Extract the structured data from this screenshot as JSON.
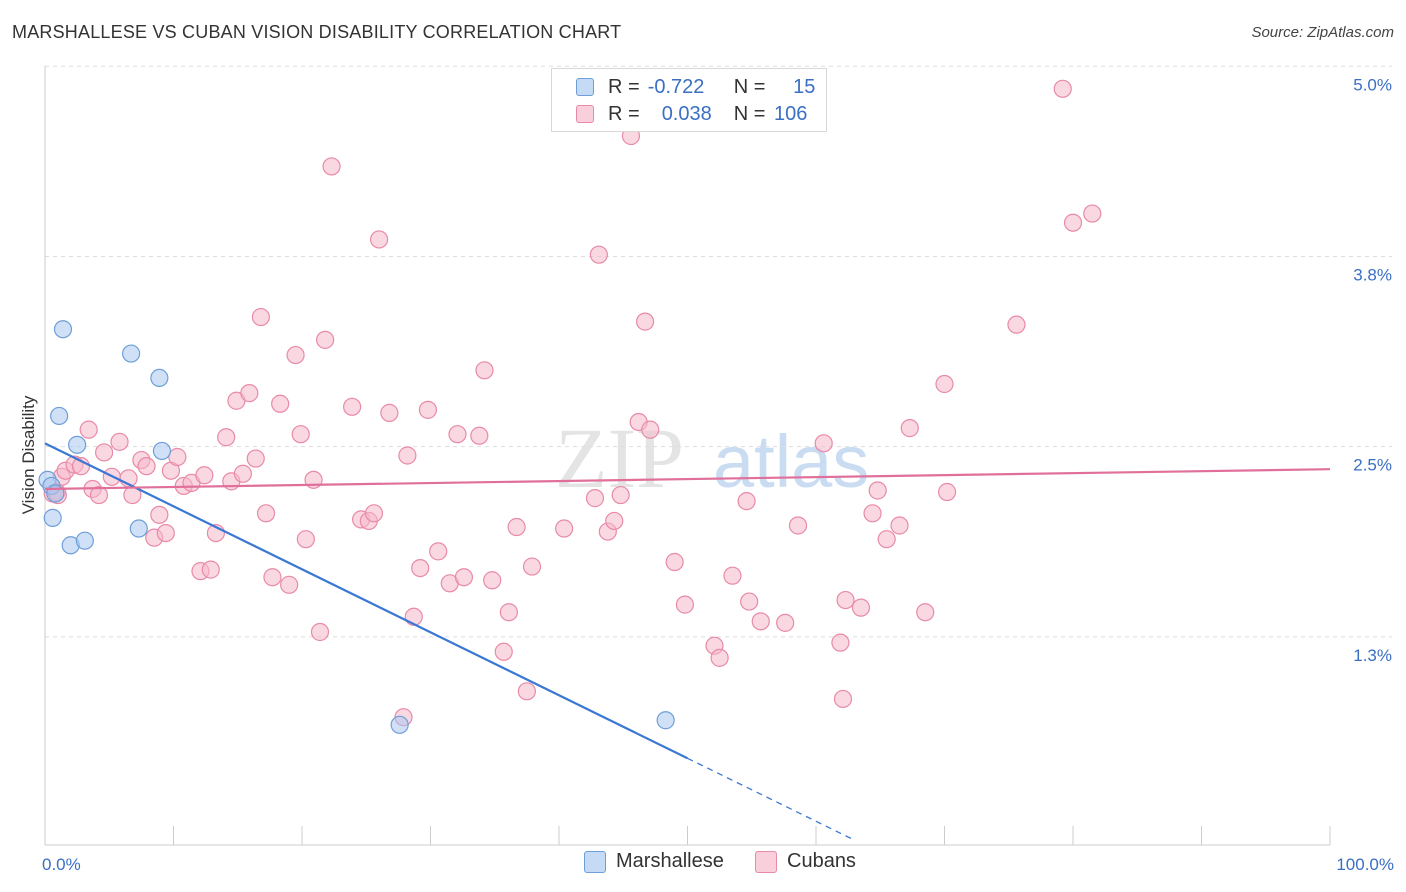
{
  "header": {
    "title": "MARSHALLESE VS CUBAN VISION DISABILITY CORRELATION CHART",
    "source": "Source: ZipAtlas.com"
  },
  "legend": {
    "rows": [
      {
        "r_label": "R =",
        "r_value": "-0.722",
        "n_label": "N =",
        "n_value": "15"
      },
      {
        "r_label": "R =",
        "r_value": "0.038",
        "n_label": "N =",
        "n_value": "106"
      }
    ]
  },
  "bottom_legend": {
    "items": [
      {
        "label": "Marshallese"
      },
      {
        "label": "Cubans"
      }
    ]
  },
  "watermark": {
    "zip": "ZIP",
    "atlas": "atlas"
  },
  "colors": {
    "marshallese_fill": "#aac8f0",
    "marshallese_stroke": "#6e9fd8",
    "marshallese_line": "#3a78d4",
    "cubans_fill": "#f5b8cb",
    "cubans_stroke": "#e88aa8",
    "cubans_line": "#e0709a",
    "axis_label": "#3a6fc4",
    "grid": "#dddddd"
  },
  "chart_data": {
    "type": "scatter",
    "title": "MARSHALLESE VS CUBAN VISION DISABILITY CORRELATION CHART",
    "xlabel": "",
    "ylabel": "Vision Disability",
    "xlim": [
      0,
      100
    ],
    "ylim": [
      0,
      5.12
    ],
    "x_tick_labels": [
      {
        "value": 0,
        "label": "0.0%"
      },
      {
        "value": 100,
        "label": "100.0%"
      }
    ],
    "y_tick_labels": [
      {
        "value": 1.25,
        "label": "1.3%"
      },
      {
        "value": 2.5,
        "label": "2.5%"
      },
      {
        "value": 3.75,
        "label": "3.8%"
      },
      {
        "value": 5.0,
        "label": "5.0%"
      }
    ],
    "series": [
      {
        "name": "Marshallese",
        "r": -0.722,
        "n": 15,
        "points": [
          [
            0.2,
            2.4
          ],
          [
            0.5,
            2.36
          ],
          [
            0.6,
            2.15
          ],
          [
            0.8,
            2.31
          ],
          [
            1.1,
            2.82
          ],
          [
            1.4,
            3.39
          ],
          [
            2.0,
            1.97
          ],
          [
            2.5,
            2.63
          ],
          [
            3.1,
            2.0
          ],
          [
            6.7,
            3.23
          ],
          [
            7.3,
            2.08
          ],
          [
            8.9,
            3.07
          ],
          [
            9.1,
            2.59
          ],
          [
            27.6,
            0.79
          ],
          [
            48.3,
            0.82
          ]
        ],
        "trend": {
          "x0": 0,
          "y0": 2.64,
          "x1": 50,
          "y1": 0.57,
          "dashed_to_x": 62.9
        }
      },
      {
        "name": "Cubans",
        "r": 0.038,
        "n": 106,
        "points": [
          [
            0.6,
            2.31
          ],
          [
            0.9,
            2.32
          ],
          [
            1.3,
            2.42
          ],
          [
            1.6,
            2.46
          ],
          [
            2.3,
            2.5
          ],
          [
            2.8,
            2.49
          ],
          [
            3.4,
            2.73
          ],
          [
            3.7,
            2.34
          ],
          [
            4.2,
            2.3
          ],
          [
            4.6,
            2.58
          ],
          [
            5.2,
            2.42
          ],
          [
            5.8,
            2.65
          ],
          [
            6.5,
            2.41
          ],
          [
            6.8,
            2.3
          ],
          [
            7.5,
            2.53
          ],
          [
            7.9,
            2.49
          ],
          [
            8.5,
            2.02
          ],
          [
            8.9,
            2.17
          ],
          [
            9.4,
            2.05
          ],
          [
            9.8,
            2.46
          ],
          [
            10.3,
            2.55
          ],
          [
            10.8,
            2.36
          ],
          [
            11.4,
            2.38
          ],
          [
            12.1,
            1.8
          ],
          [
            12.4,
            2.43
          ],
          [
            12.9,
            1.81
          ],
          [
            13.3,
            2.05
          ],
          [
            14.1,
            2.68
          ],
          [
            14.5,
            2.39
          ],
          [
            14.9,
            2.92
          ],
          [
            15.4,
            2.44
          ],
          [
            15.9,
            2.97
          ],
          [
            16.4,
            2.54
          ],
          [
            16.8,
            3.47
          ],
          [
            17.2,
            2.18
          ],
          [
            17.7,
            1.76
          ],
          [
            18.3,
            2.9
          ],
          [
            19.0,
            1.71
          ],
          [
            19.5,
            3.22
          ],
          [
            19.9,
            2.7
          ],
          [
            20.3,
            2.01
          ],
          [
            20.9,
            2.4
          ],
          [
            21.4,
            1.4
          ],
          [
            21.8,
            3.32
          ],
          [
            22.3,
            4.46
          ],
          [
            23.9,
            2.88
          ],
          [
            24.6,
            2.14
          ],
          [
            25.2,
            2.13
          ],
          [
            25.6,
            2.18
          ],
          [
            26.0,
            3.98
          ],
          [
            26.8,
            2.84
          ],
          [
            27.9,
            0.84
          ],
          [
            28.2,
            2.56
          ],
          [
            28.7,
            1.5
          ],
          [
            29.2,
            1.82
          ],
          [
            29.8,
            2.86
          ],
          [
            30.6,
            1.93
          ],
          [
            31.5,
            1.72
          ],
          [
            32.1,
            2.7
          ],
          [
            32.6,
            1.76
          ],
          [
            33.8,
            2.69
          ],
          [
            34.2,
            3.12
          ],
          [
            34.8,
            1.74
          ],
          [
            35.7,
            1.27
          ],
          [
            36.1,
            1.53
          ],
          [
            36.7,
            2.09
          ],
          [
            37.5,
            1.01
          ],
          [
            37.9,
            1.83
          ],
          [
            40.4,
            2.08
          ],
          [
            42.8,
            2.28
          ],
          [
            43.1,
            3.88
          ],
          [
            43.8,
            2.06
          ],
          [
            44.3,
            2.13
          ],
          [
            44.8,
            2.3
          ],
          [
            45.6,
            4.66
          ],
          [
            46.2,
            2.78
          ],
          [
            46.7,
            3.44
          ],
          [
            47.1,
            2.73
          ],
          [
            49.0,
            1.86
          ],
          [
            49.8,
            1.58
          ],
          [
            52.1,
            1.31
          ],
          [
            52.5,
            1.23
          ],
          [
            53.5,
            1.77
          ],
          [
            54.6,
            2.26
          ],
          [
            54.8,
            1.6
          ],
          [
            55.7,
            1.47
          ],
          [
            57.6,
            1.46
          ],
          [
            58.6,
            2.1
          ],
          [
            60.6,
            2.64
          ],
          [
            61.9,
            1.33
          ],
          [
            62.1,
            0.96
          ],
          [
            62.3,
            1.61
          ],
          [
            63.5,
            1.56
          ],
          [
            64.4,
            2.18
          ],
          [
            64.8,
            2.33
          ],
          [
            65.5,
            2.01
          ],
          [
            66.5,
            2.1
          ],
          [
            67.3,
            2.74
          ],
          [
            68.5,
            1.53
          ],
          [
            70.0,
            3.03
          ],
          [
            70.2,
            2.32
          ],
          [
            75.6,
            3.42
          ],
          [
            79.2,
            4.97
          ],
          [
            80.0,
            4.09
          ],
          [
            81.5,
            4.15
          ],
          [
            1.0,
            2.3
          ]
        ],
        "trend": {
          "x0": 0,
          "y0": 2.34,
          "x1": 100,
          "y1": 2.47
        }
      }
    ]
  }
}
